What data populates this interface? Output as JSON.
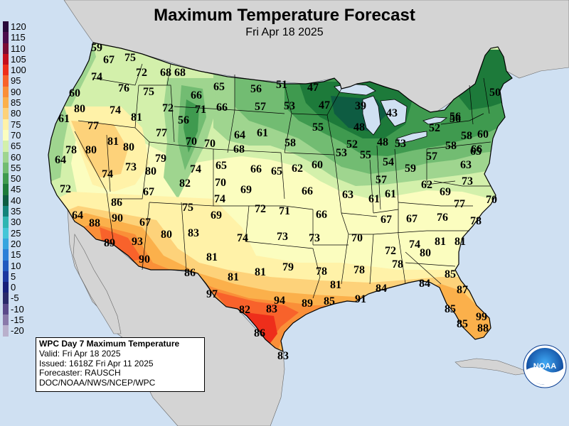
{
  "title": "Maximum Temperature Forecast",
  "subtitle": "Fri Apr 18 2025",
  "legend": [
    {
      "label": "120",
      "color": "#2a0a3a"
    },
    {
      "label": "115",
      "color": "#4c0d4c"
    },
    {
      "label": "110",
      "color": "#7a0c35"
    },
    {
      "label": "105",
      "color": "#c40e1e"
    },
    {
      "label": "100",
      "color": "#ee2e1b"
    },
    {
      "label": "95",
      "color": "#f8622b"
    },
    {
      "label": "90",
      "color": "#fa8f38"
    },
    {
      "label": "85",
      "color": "#fbb04b"
    },
    {
      "label": "80",
      "color": "#fdd27a"
    },
    {
      "label": "75",
      "color": "#fff2a8"
    },
    {
      "label": "70",
      "color": "#fbfdbf"
    },
    {
      "label": "65",
      "color": "#d3f0ab"
    },
    {
      "label": "60",
      "color": "#9fd58f"
    },
    {
      "label": "55",
      "color": "#72bc72"
    },
    {
      "label": "50",
      "color": "#3f9a4f"
    },
    {
      "label": "45",
      "color": "#1d7a3a"
    },
    {
      "label": "40",
      "color": "#0e5c42"
    },
    {
      "label": "35",
      "color": "#13837b"
    },
    {
      "label": "30",
      "color": "#2fb5b2"
    },
    {
      "label": "25",
      "color": "#44c6d8"
    },
    {
      "label": "20",
      "color": "#35a5df"
    },
    {
      "label": "15",
      "color": "#2a7fd8"
    },
    {
      "label": "10",
      "color": "#2159bf"
    },
    {
      "label": "5",
      "color": "#1c38a0"
    },
    {
      "label": "0",
      "color": "#17207a"
    },
    {
      "label": "-5",
      "color": "#2a2a6a"
    },
    {
      "label": "-10",
      "color": "#5a4a8a"
    },
    {
      "label": "-15",
      "color": "#8a7aaa"
    },
    {
      "label": "-20",
      "color": "#b9b0cc"
    }
  ],
  "info": {
    "heading": "WPC Day 7 Maximum Temperature",
    "valid": "Valid: Fri Apr 18 2025",
    "issued": "Issued: 1618Z Fri Apr 11 2025",
    "forecaster": "Forecaster: RAUSCH",
    "agency": "DOC/NOAA/NWS/NCEP/WPC"
  },
  "logo": {
    "text": "NOAA"
  },
  "colors": {
    "ocean": "#cfe0f2",
    "land_outside": "#d4d4d4",
    "border": "#000000"
  },
  "temperature_labels": [
    "59",
    "67",
    "75",
    "74",
    "72",
    "68",
    "68",
    "60",
    "76",
    "75",
    "66",
    "65",
    "56",
    "51",
    "47",
    "80",
    "74",
    "81",
    "72",
    "71",
    "66",
    "57",
    "53",
    "47",
    "39",
    "43",
    "56",
    "50",
    "61",
    "77",
    "77",
    "56",
    "70",
    "70",
    "64",
    "61",
    "58",
    "55",
    "48",
    "52",
    "56",
    "58",
    "60",
    "81",
    "80",
    "64",
    "68",
    "48",
    "53",
    "53",
    "52",
    "58",
    "66",
    "78",
    "80",
    "79",
    "73",
    "65",
    "66",
    "65",
    "62",
    "60",
    "55",
    "57",
    "65",
    "74",
    "80",
    "82",
    "74",
    "70",
    "69",
    "66",
    "63",
    "57",
    "54",
    "59",
    "62",
    "63",
    "72",
    "69",
    "73",
    "67",
    "86",
    "75",
    "74",
    "72",
    "71",
    "66",
    "61",
    "61",
    "67",
    "67",
    "76",
    "77",
    "70",
    "64",
    "88",
    "90",
    "67",
    "69",
    "78",
    "89",
    "93",
    "80",
    "83",
    "74",
    "73",
    "73",
    "70",
    "72",
    "74",
    "80",
    "81",
    "81",
    "90",
    "81",
    "79",
    "78",
    "78",
    "78",
    "85",
    "86",
    "81",
    "81",
    "81",
    "84",
    "84",
    "87",
    "97",
    "94",
    "89",
    "91",
    "82",
    "83",
    "85",
    "85",
    "99",
    "86",
    "85",
    "88",
    "83"
  ]
}
